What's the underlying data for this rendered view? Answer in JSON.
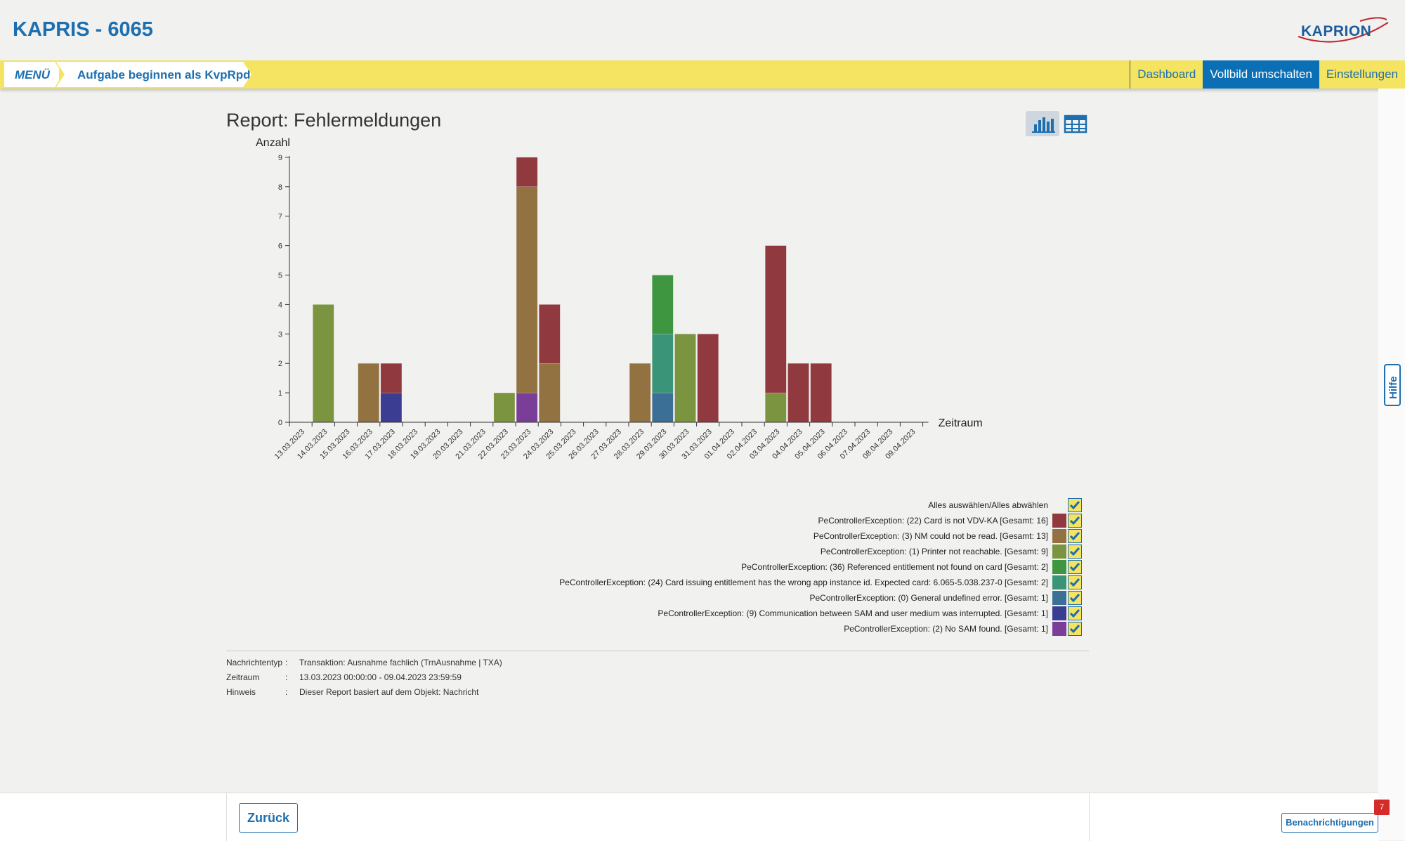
{
  "app": {
    "title": "KAPRIS - 6065",
    "logo_text": "KAPRION"
  },
  "nav": {
    "menu_label": "MENÜ",
    "task_label": "Aufgabe beginnen als KvpRpd",
    "right_items": [
      {
        "label": "Dashboard",
        "active": false
      },
      {
        "label": "Vollbild umschalten",
        "active": true
      },
      {
        "label": "Einstellungen",
        "active": false
      }
    ]
  },
  "report": {
    "title": "Report: Fehlermeldungen"
  },
  "colors": {
    "accent": "#1d6fb0",
    "nav_background": "#f4e461",
    "active_nav": "#0b6fb6",
    "badge": "#d52b2b"
  },
  "chart_data": {
    "type": "bar",
    "stacked": true,
    "ylabel": "Anzahl",
    "xlabel": "Zeitraum",
    "ylim": [
      0,
      9
    ],
    "yticks": [
      0,
      1,
      2,
      3,
      4,
      5,
      6,
      7,
      8,
      9
    ],
    "categories": [
      "13.03.2023",
      "14.03.2023",
      "15.03.2023",
      "16.03.2023",
      "17.03.2023",
      "18.03.2023",
      "19.03.2023",
      "20.03.2023",
      "21.03.2023",
      "22.03.2023",
      "23.03.2023",
      "24.03.2023",
      "25.03.2023",
      "26.03.2023",
      "27.03.2023",
      "28.03.2023",
      "29.03.2023",
      "30.03.2023",
      "31.03.2023",
      "01.04.2023",
      "02.04.2023",
      "03.04.2023",
      "04.04.2023",
      "05.04.2023",
      "06.04.2023",
      "07.04.2023",
      "08.04.2023",
      "09.04.2023"
    ],
    "series": [
      {
        "name": "PeControllerException: (2) No SAM found. [Gesamt: 1]",
        "color": "#7a3e98",
        "values": [
          0,
          0,
          0,
          0,
          0,
          0,
          0,
          0,
          0,
          0,
          1,
          0,
          0,
          0,
          0,
          0,
          0,
          0,
          0,
          0,
          0,
          0,
          0,
          0,
          0,
          0,
          0,
          0
        ]
      },
      {
        "name": "PeControllerException: (9) Communication between SAM and user medium was interrupted. [Gesamt: 1]",
        "color": "#3a3d92",
        "values": [
          0,
          0,
          0,
          0,
          1,
          0,
          0,
          0,
          0,
          0,
          0,
          0,
          0,
          0,
          0,
          0,
          0,
          0,
          0,
          0,
          0,
          0,
          0,
          0,
          0,
          0,
          0,
          0
        ]
      },
      {
        "name": "PeControllerException: (0) General undefined error. [Gesamt: 1]",
        "color": "#3c6f95",
        "values": [
          0,
          0,
          0,
          0,
          0,
          0,
          0,
          0,
          0,
          0,
          0,
          0,
          0,
          0,
          0,
          0,
          1,
          0,
          0,
          0,
          0,
          0,
          0,
          0,
          0,
          0,
          0,
          0
        ]
      },
      {
        "name": "PeControllerException: (24) Card issuing entitlement has the wrong app instance id. Expected card: 6.065-5.038.237-0 [Gesamt: 2]",
        "color": "#3a9478",
        "values": [
          0,
          0,
          0,
          0,
          0,
          0,
          0,
          0,
          0,
          0,
          0,
          0,
          0,
          0,
          0,
          0,
          2,
          0,
          0,
          0,
          0,
          0,
          0,
          0,
          0,
          0,
          0,
          0
        ]
      },
      {
        "name": "PeControllerException: (36) Referenced entitlement not found on card [Gesamt: 2]",
        "color": "#3f9641",
        "values": [
          0,
          0,
          0,
          0,
          0,
          0,
          0,
          0,
          0,
          0,
          0,
          0,
          0,
          0,
          0,
          0,
          2,
          0,
          0,
          0,
          0,
          0,
          0,
          0,
          0,
          0,
          0,
          0
        ]
      },
      {
        "name": "PeControllerException: (1) Printer not reachable. [Gesamt: 9]",
        "color": "#7a9440",
        "values": [
          0,
          4,
          0,
          0,
          0,
          0,
          0,
          0,
          0,
          1,
          0,
          0,
          0,
          0,
          0,
          0,
          0,
          3,
          0,
          0,
          0,
          1,
          0,
          0,
          0,
          0,
          0,
          0
        ]
      },
      {
        "name": "PeControllerException: (3) NM could not be read. [Gesamt: 13]",
        "color": "#917240",
        "values": [
          0,
          0,
          0,
          2,
          0,
          0,
          0,
          0,
          0,
          0,
          7,
          2,
          0,
          0,
          0,
          2,
          0,
          0,
          0,
          0,
          0,
          0,
          0,
          0,
          0,
          0,
          0,
          0
        ]
      },
      {
        "name": "PeControllerException: (22) Card is not VDV-KA [Gesamt: 16]",
        "color": "#903a3f",
        "values": [
          0,
          0,
          0,
          0,
          1,
          0,
          0,
          0,
          0,
          0,
          1,
          2,
          0,
          0,
          0,
          0,
          0,
          0,
          3,
          0,
          0,
          5,
          2,
          2,
          0,
          0,
          0,
          0
        ]
      }
    ]
  },
  "legend": {
    "select_all_label": "Alles auswählen/Alles abwählen",
    "items": [
      {
        "label": "PeControllerException: (22) Card is not VDV-KA [Gesamt: 16]",
        "color": "#903a3f",
        "checked": true
      },
      {
        "label": "PeControllerException: (3) NM could not be read. [Gesamt: 13]",
        "color": "#917240",
        "checked": true
      },
      {
        "label": "PeControllerException: (1) Printer not reachable. [Gesamt: 9]",
        "color": "#7a9440",
        "checked": true
      },
      {
        "label": "PeControllerException: (36) Referenced entitlement not found on card [Gesamt: 2]",
        "color": "#3f9641",
        "checked": true
      },
      {
        "label": "PeControllerException: (24) Card issuing entitlement has the wrong app instance id. Expected card: 6.065-5.038.237-0 [Gesamt: 2]",
        "color": "#3a9478",
        "checked": true
      },
      {
        "label": "PeControllerException: (0) General undefined error. [Gesamt: 1]",
        "color": "#3c6f95",
        "checked": true
      },
      {
        "label": "PeControllerException: (9) Communication between SAM and user medium was interrupted. [Gesamt: 1]",
        "color": "#3a3d92",
        "checked": true
      },
      {
        "label": "PeControllerException: (2) No SAM found. [Gesamt: 1]",
        "color": "#7a3e98",
        "checked": true
      }
    ]
  },
  "meta": [
    {
      "key": "Nachrichtentyp",
      "value": "Transaktion: Ausnahme fachlich (TrnAusnahme | TXA)"
    },
    {
      "key": "Zeitraum",
      "value": "13.03.2023 00:00:00 - 09.04.2023 23:59:59"
    },
    {
      "key": "Hinweis",
      "value": "Dieser Report basiert auf dem Objekt: Nachricht"
    }
  ],
  "help_label": "Hilfe",
  "footer": {
    "back_label": "Zurück",
    "notifications_label": "Benachrichtigungen",
    "notification_count": "7"
  },
  "icons": {
    "chart_view": "bar-chart-icon",
    "table_view": "table-icon",
    "check": "checkmark-icon"
  }
}
